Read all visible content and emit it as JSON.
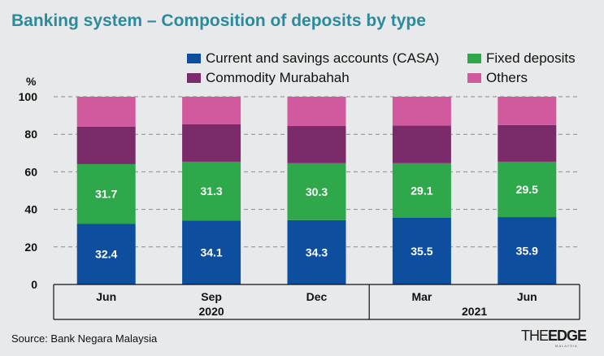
{
  "title": "Banking system – Composition of deposits by type",
  "unit_label": "%",
  "source": "Source: Bank Negara Malaysia",
  "logo": {
    "text_the": "THE",
    "text_edge": "EDGE",
    "sub": "MALAYSIA"
  },
  "chart_data": {
    "type": "bar",
    "stacked": true,
    "title": "Banking system – Composition of deposits by type",
    "ylabel": "%",
    "ylim": [
      0,
      100
    ],
    "yticks": [
      0,
      20,
      40,
      60,
      80,
      100
    ],
    "categories": [
      "Jun",
      "Sep",
      "Dec",
      "Mar",
      "Jun"
    ],
    "groups": [
      {
        "label": "2020",
        "span": [
          0,
          2
        ]
      },
      {
        "label": "2021",
        "span": [
          3,
          4
        ]
      }
    ],
    "series": [
      {
        "name": "Current and savings accounts (CASA)",
        "color": "#0d4f9e",
        "values": [
          32.4,
          34.1,
          34.3,
          35.5,
          35.9
        ],
        "labels": [
          "32.4",
          "34.1",
          "34.3",
          "35.5",
          "35.9"
        ]
      },
      {
        "name": "Fixed deposits",
        "color": "#2ea84a",
        "values": [
          31.7,
          31.3,
          30.3,
          29.1,
          29.5
        ],
        "labels": [
          "31.7",
          "31.3",
          "30.3",
          "29.1",
          "29.5"
        ]
      },
      {
        "name": "Commodity Murabahah",
        "color": "#7b2a6a",
        "values": [
          20.0,
          19.9,
          19.8,
          20.0,
          19.5
        ]
      },
      {
        "name": "Others",
        "color": "#d05a9d",
        "values": [
          15.9,
          14.7,
          15.6,
          15.4,
          15.1
        ]
      }
    ],
    "legend": "top-right"
  }
}
